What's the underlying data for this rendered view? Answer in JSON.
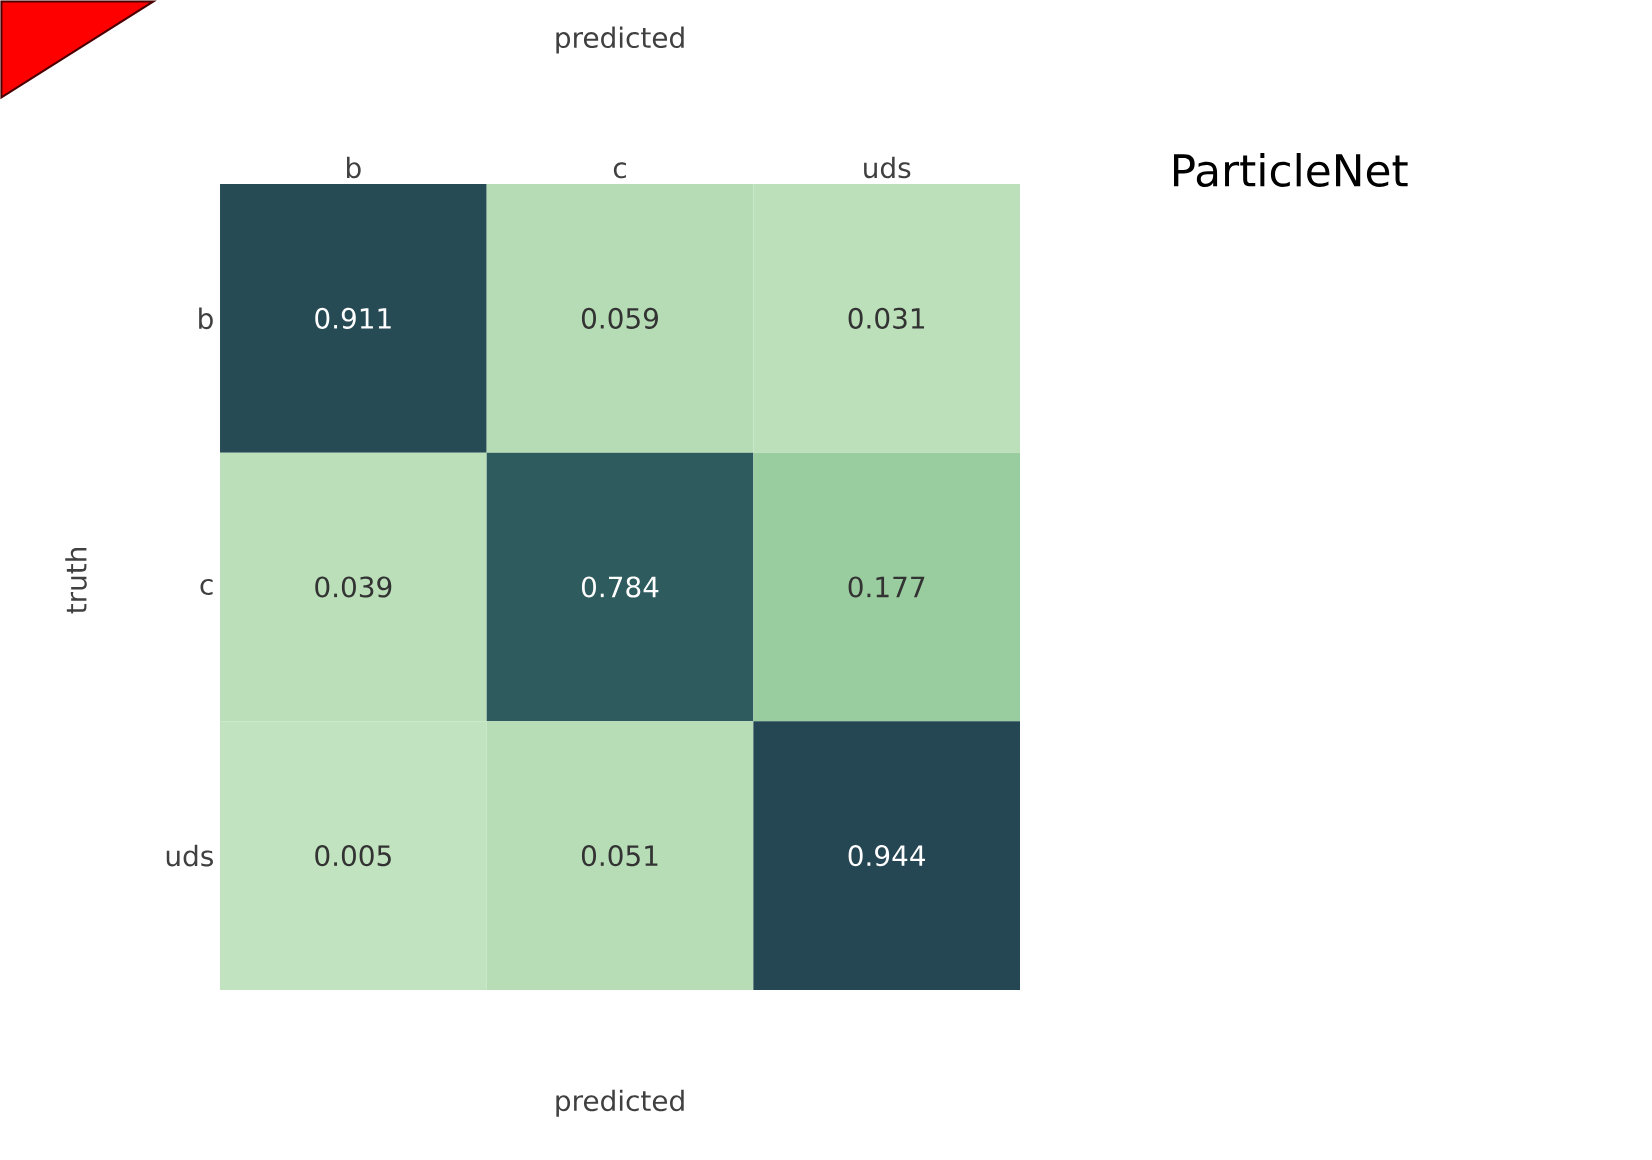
{
  "chart_data": {
    "type": "heatmap",
    "xlabel": "predicted",
    "x2label": "predicted",
    "ylabel": "truth",
    "categories": [
      "b",
      "c",
      "uds"
    ],
    "y_categories": [
      "b",
      "c",
      "uds"
    ],
    "cells": [
      [
        0.911,
        0.059,
        0.031
      ],
      [
        0.039,
        0.784,
        0.177
      ],
      [
        0.005,
        0.051,
        0.944
      ]
    ],
    "data_labels": true,
    "annotations": [
      "ParticleNet"
    ]
  }
}
